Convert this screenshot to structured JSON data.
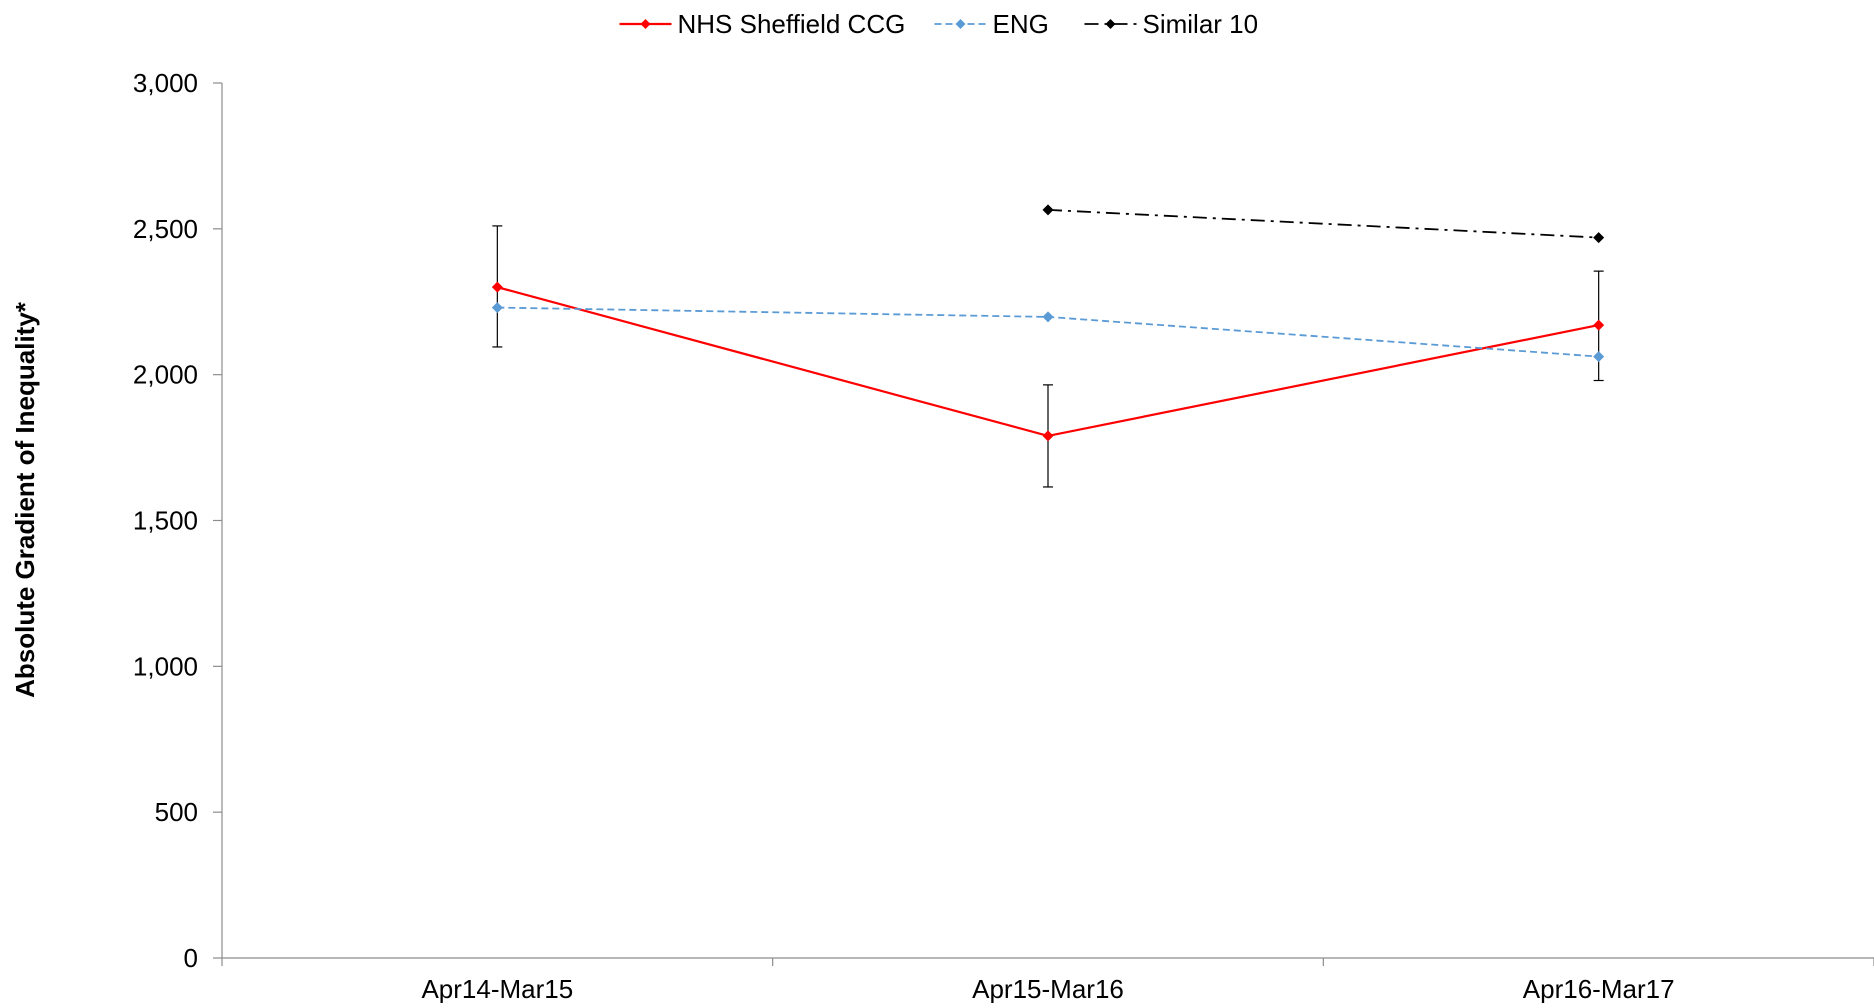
{
  "chart_data": {
    "type": "line",
    "title": "",
    "xlabel": "",
    "ylabel": "Absolute Gradient of Inequality*",
    "categories": [
      "Apr14-Mar15",
      "Apr15-Mar16",
      "Apr16-Mar17"
    ],
    "ylim": [
      0,
      3000
    ],
    "yticks": [
      0,
      500,
      1000,
      1500,
      2000,
      2500,
      3000
    ],
    "ytick_labels": [
      "0",
      "500",
      "1,000",
      "1,500",
      "2,000",
      "2,500",
      "3,000"
    ],
    "grid": false,
    "legend_position": "top-center",
    "series": [
      {
        "name": "NHS Sheffield CCG",
        "color": "#ff0000",
        "line_style": "solid",
        "values": [
          2300,
          1790,
          2170
        ],
        "error_low": [
          2095,
          1615,
          1980
        ],
        "error_high": [
          2510,
          1965,
          2355
        ]
      },
      {
        "name": "ENG",
        "color": "#5b9bd5",
        "line_style": "dashed",
        "values": [
          2230,
          2198,
          2062
        ]
      },
      {
        "name": "Similar 10",
        "color": "#000000",
        "line_style": "dash-dot",
        "values": [
          null,
          2565,
          2470
        ]
      }
    ]
  }
}
